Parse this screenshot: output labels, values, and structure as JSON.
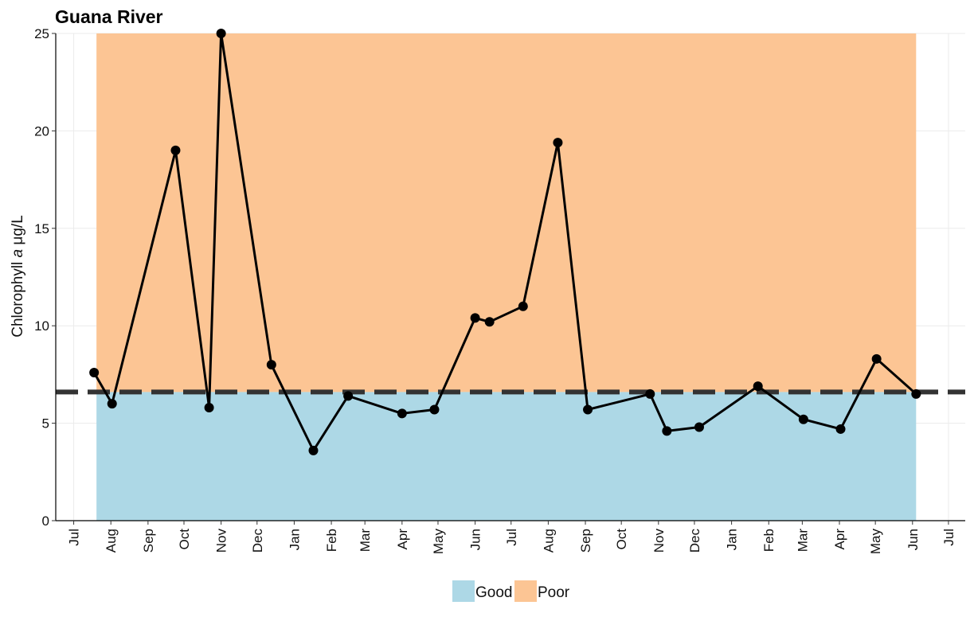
{
  "chart_data": {
    "type": "line",
    "title": "Guana River",
    "ylabel": {
      "main": "Chlorophyll ",
      "italic": "a",
      "unit": " μg/L"
    },
    "xlabel": "",
    "ylim": [
      0,
      25
    ],
    "yticks": [
      0,
      5,
      10,
      15,
      20,
      25
    ],
    "xlim": [
      "2017-06-16",
      "2019-07-15"
    ],
    "xticks": [
      {
        "date": "2017-07-01",
        "label": "Jul"
      },
      {
        "date": "2017-08-01",
        "label": "Aug"
      },
      {
        "date": "2017-09-01",
        "label": "Sep"
      },
      {
        "date": "2017-10-01",
        "label": "Oct"
      },
      {
        "date": "2017-11-01",
        "label": "Nov"
      },
      {
        "date": "2017-12-01",
        "label": "Dec"
      },
      {
        "date": "2018-01-01",
        "label": "Jan"
      },
      {
        "date": "2018-02-01",
        "label": "Feb"
      },
      {
        "date": "2018-03-01",
        "label": "Mar"
      },
      {
        "date": "2018-04-01",
        "label": "Apr"
      },
      {
        "date": "2018-05-01",
        "label": "May"
      },
      {
        "date": "2018-06-01",
        "label": "Jun"
      },
      {
        "date": "2018-07-01",
        "label": "Jul"
      },
      {
        "date": "2018-08-01",
        "label": "Aug"
      },
      {
        "date": "2018-09-01",
        "label": "Sep"
      },
      {
        "date": "2018-10-01",
        "label": "Oct"
      },
      {
        "date": "2018-11-01",
        "label": "Nov"
      },
      {
        "date": "2018-12-01",
        "label": "Dec"
      },
      {
        "date": "2019-01-01",
        "label": "Jan"
      },
      {
        "date": "2019-02-01",
        "label": "Feb"
      },
      {
        "date": "2019-03-01",
        "label": "Mar"
      },
      {
        "date": "2019-04-01",
        "label": "Apr"
      },
      {
        "date": "2019-05-01",
        "label": "May"
      },
      {
        "date": "2019-06-01",
        "label": "Jun"
      },
      {
        "date": "2019-07-01",
        "label": "Jul"
      }
    ],
    "threshold": 6.6,
    "regions": {
      "start": "2017-07-20",
      "end": "2019-06-04",
      "good": {
        "label": "Good",
        "color": "#ADD8E6"
      },
      "poor": {
        "label": "Poor",
        "color": "#FCC594"
      }
    },
    "series": [
      {
        "color": "#000000",
        "points": [
          {
            "date": "2017-07-18",
            "value": 7.6
          },
          {
            "date": "2017-08-02",
            "value": 6.0
          },
          {
            "date": "2017-09-24",
            "value": 19.0
          },
          {
            "date": "2017-10-22",
            "value": 5.8
          },
          {
            "date": "2017-11-01",
            "value": 25.0
          },
          {
            "date": "2017-12-13",
            "value": 8.0
          },
          {
            "date": "2018-01-17",
            "value": 3.6
          },
          {
            "date": "2018-02-15",
            "value": 6.4
          },
          {
            "date": "2018-04-01",
            "value": 5.5
          },
          {
            "date": "2018-04-28",
            "value": 5.7
          },
          {
            "date": "2018-06-01",
            "value": 10.4
          },
          {
            "date": "2018-06-13",
            "value": 10.2
          },
          {
            "date": "2018-07-11",
            "value": 11.0
          },
          {
            "date": "2018-08-09",
            "value": 19.4
          },
          {
            "date": "2018-09-03",
            "value": 5.7
          },
          {
            "date": "2018-10-25",
            "value": 6.5
          },
          {
            "date": "2018-11-08",
            "value": 4.6
          },
          {
            "date": "2018-12-05",
            "value": 4.8
          },
          {
            "date": "2019-01-23",
            "value": 6.9
          },
          {
            "date": "2019-03-02",
            "value": 5.2
          },
          {
            "date": "2019-04-02",
            "value": 4.7
          },
          {
            "date": "2019-05-02",
            "value": 8.3
          },
          {
            "date": "2019-06-04",
            "value": 6.5
          }
        ]
      }
    ],
    "grid": true,
    "legend": {
      "position": "bottom",
      "entries": [
        "Good",
        "Poor"
      ]
    }
  }
}
